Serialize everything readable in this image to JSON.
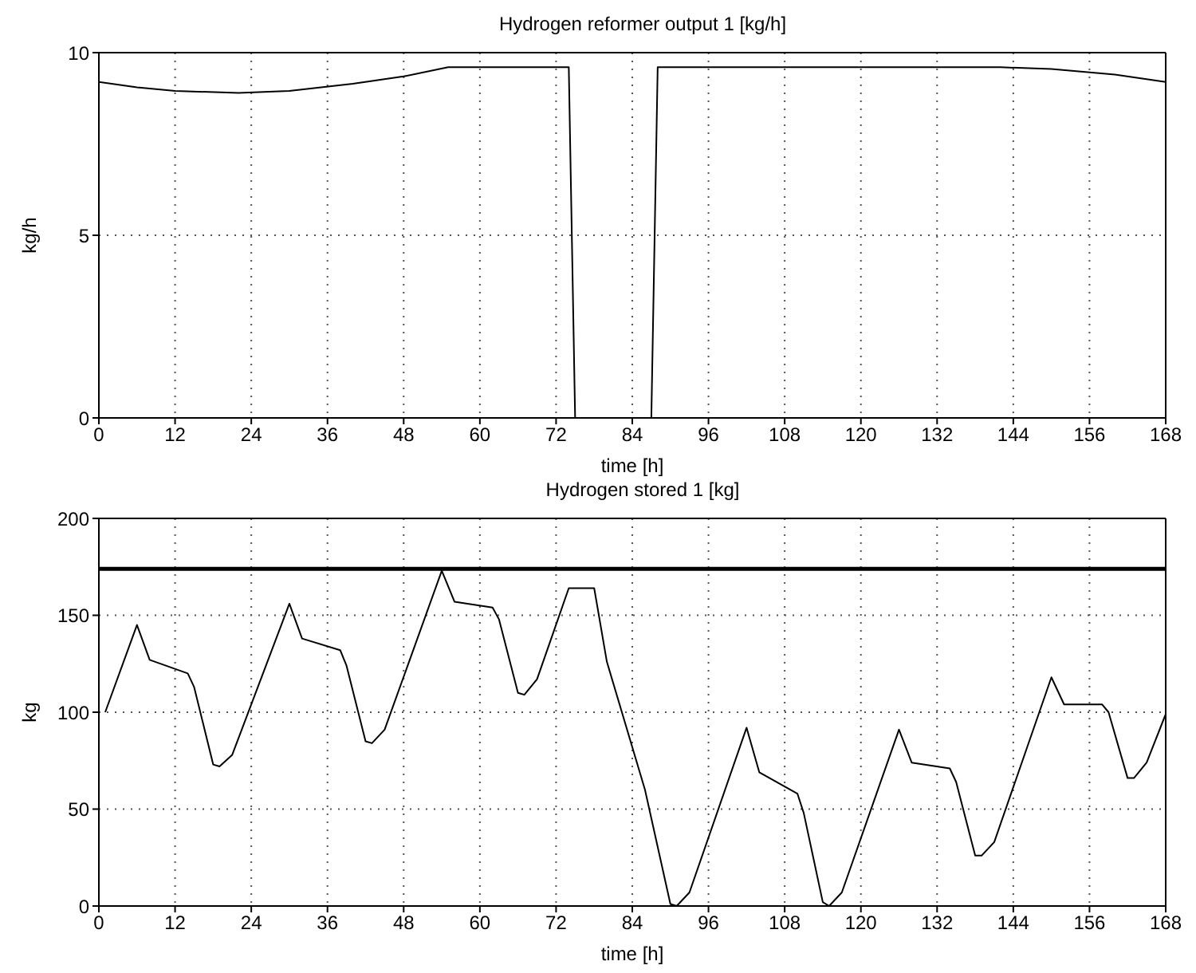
{
  "chart_data": [
    {
      "type": "line",
      "title": "Hydrogen reformer output 1 [kg/h]",
      "xlabel": "time [h]",
      "ylabel": "kg/h",
      "xlim": [
        0,
        168
      ],
      "xticks": [
        0,
        12,
        24,
        36,
        48,
        60,
        72,
        84,
        96,
        108,
        120,
        132,
        144,
        156,
        168
      ],
      "ylim": [
        0,
        10
      ],
      "yticks": [
        0,
        5,
        10
      ],
      "grid": true,
      "marker": "none",
      "line_style": "solid",
      "series": [
        {
          "color": "#000000",
          "x": [
            0,
            6,
            12,
            22,
            30,
            40,
            48,
            55,
            74,
            75,
            87,
            88,
            142,
            150,
            160,
            168
          ],
          "values": [
            9.2,
            9.05,
            8.95,
            8.9,
            8.95,
            9.15,
            9.35,
            9.6,
            9.6,
            0,
            0,
            9.6,
            9.6,
            9.55,
            9.4,
            9.2
          ]
        }
      ]
    },
    {
      "type": "line",
      "title": "Hydrogen stored 1 [kg]",
      "xlabel": "time [h]",
      "ylabel": "kg",
      "xlim": [
        0,
        168
      ],
      "xticks": [
        0,
        12,
        24,
        36,
        48,
        60,
        72,
        84,
        96,
        108,
        120,
        132,
        144,
        156,
        168
      ],
      "ylim": [
        0,
        200
      ],
      "yticks": [
        0,
        50,
        100,
        150,
        200
      ],
      "grid": true,
      "marker": "none",
      "line_style": "solid",
      "ref_lines": [
        {
          "axis": "y",
          "value": 174,
          "color": "#000000"
        }
      ],
      "series": [
        {
          "color": "#000000",
          "x": [
            1,
            6,
            8,
            14,
            15,
            18,
            19,
            21,
            30,
            32,
            38,
            39,
            42,
            43,
            45,
            54,
            56,
            62,
            63,
            66,
            67,
            69,
            74,
            78,
            80,
            86,
            90,
            91,
            93,
            102,
            104,
            110,
            111,
            114,
            115,
            117,
            126,
            128,
            134,
            135,
            138,
            139,
            141,
            150,
            152,
            158,
            159,
            162,
            163,
            165,
            168
          ],
          "values": [
            100,
            145,
            127,
            120,
            113,
            73,
            72,
            78,
            156,
            138,
            132,
            124,
            85,
            84,
            91,
            173,
            157,
            154,
            148,
            110,
            109,
            117,
            164,
            164,
            126,
            60,
            1,
            0,
            7,
            92,
            69,
            58,
            48,
            2,
            0,
            7,
            91,
            74,
            71,
            64,
            26,
            26,
            33,
            118,
            104,
            104,
            100,
            66,
            66,
            74,
            99
          ]
        }
      ]
    }
  ]
}
